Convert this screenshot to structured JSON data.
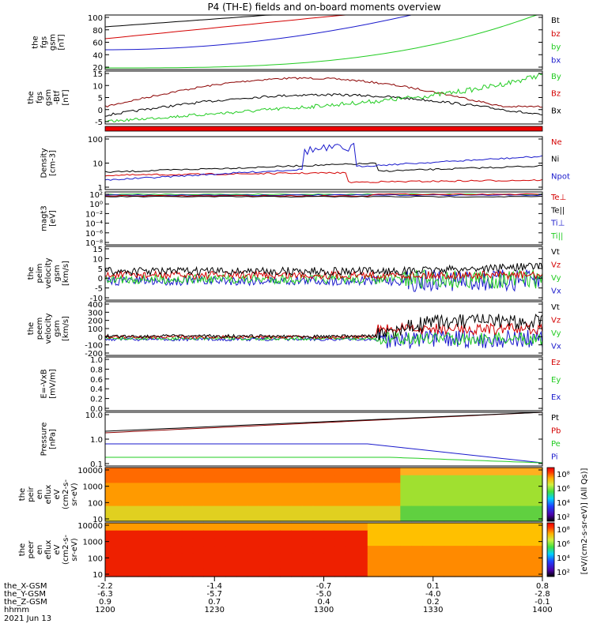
{
  "title": "P4 (TH-E) fields and on-board moments overview",
  "colors": {
    "black": "#000000",
    "red": "#d40000",
    "blue": "#1a1acc",
    "green": "#22cc22",
    "darkred": "#8b0000"
  },
  "chart_data": [
    {
      "type": "line",
      "ylabel_lines": [
        "the",
        "fgs",
        "gsm",
        "[nT]"
      ],
      "yticks": [
        "100",
        "80",
        "60",
        "40",
        "20"
      ],
      "legend": [
        {
          "label": "Bt",
          "color": "black"
        },
        {
          "label": "bz",
          "color": "red"
        },
        {
          "label": "by",
          "color": "green"
        },
        {
          "label": "bx",
          "color": "blue"
        }
      ]
    },
    {
      "type": "line",
      "ylabel_lines": [
        "the",
        "fgs",
        "gsm",
        "-Btf",
        "[nT]"
      ],
      "yticks": [
        "15",
        "10",
        "5",
        "0",
        "-5"
      ],
      "legend": [
        {
          "label": "By",
          "color": "green"
        },
        {
          "label": "Bz",
          "color": "red"
        },
        {
          "label": "Bx",
          "color": "black"
        }
      ]
    },
    {
      "type": "line",
      "ylabel_lines": [
        "Density",
        "[cm-3]"
      ],
      "yticks": [
        "100",
        "10",
        "1"
      ],
      "legend": [
        {
          "label": "Ne",
          "color": "red"
        },
        {
          "label": "Ni",
          "color": "black"
        },
        {
          "label": "Npot",
          "color": "blue"
        }
      ]
    },
    {
      "type": "line",
      "ylabel_lines": [
        "magt3",
        "[eV]"
      ],
      "yticks": [
        "10²",
        "10⁰",
        "10⁻²",
        "10⁻⁴",
        "10⁻⁶",
        "10⁻⁸"
      ],
      "legend": [
        {
          "label": "Te⊥",
          "color": "red"
        },
        {
          "label": "Te||",
          "color": "black"
        },
        {
          "label": "Ti⊥",
          "color": "blue"
        },
        {
          "label": "Ti||",
          "color": "green"
        }
      ]
    },
    {
      "type": "line",
      "ylabel_lines": [
        "the",
        "peim",
        "velocity",
        "gsm",
        "[km/s]"
      ],
      "yticks": [
        "15",
        "10",
        "5",
        "0",
        "-5",
        "-10"
      ],
      "legend": [
        {
          "label": "Vt",
          "color": "black"
        },
        {
          "label": "Vz",
          "color": "red"
        },
        {
          "label": "Vy",
          "color": "green"
        },
        {
          "label": "Vx",
          "color": "blue"
        }
      ]
    },
    {
      "type": "line",
      "ylabel_lines": [
        "the",
        "peem",
        "velocity",
        "gsm",
        "[km/s]"
      ],
      "yticks": [
        "400",
        "300",
        "200",
        "100",
        "0",
        "-100",
        "-200"
      ],
      "legend": [
        {
          "label": "Vt",
          "color": "black"
        },
        {
          "label": "Vz",
          "color": "red"
        },
        {
          "label": "Vy",
          "color": "green"
        },
        {
          "label": "Vx",
          "color": "blue"
        }
      ]
    },
    {
      "type": "line",
      "ylabel_lines": [
        "E=-VxB",
        "[mV/m]"
      ],
      "yticks": [
        "1.0",
        "0.8",
        "0.6",
        "0.4",
        "0.2",
        "0.0"
      ],
      "legend": [
        {
          "label": "Ez",
          "color": "red"
        },
        {
          "label": "Ey",
          "color": "green"
        },
        {
          "label": "Ex",
          "color": "blue"
        }
      ]
    },
    {
      "type": "line",
      "ylabel_lines": [
        "Pressure",
        "[nPa]"
      ],
      "yticks": [
        "10.0",
        "1.0",
        "0.1"
      ],
      "legend": [
        {
          "label": "Pt",
          "color": "black"
        },
        {
          "label": "Pb",
          "color": "red"
        },
        {
          "label": "Pe",
          "color": "green"
        },
        {
          "label": "Pi",
          "color": "blue"
        }
      ]
    },
    {
      "type": "heatmap",
      "ylabel_lines": [
        "the",
        "peir",
        "en",
        "eflux",
        "eV",
        "(cm2-s-",
        "sr-eV)"
      ],
      "yticks": [
        "10000",
        "1000",
        "100",
        "10"
      ],
      "colorbar_ticks": [
        "10⁸",
        "10⁶",
        "10⁴",
        "10²"
      ]
    },
    {
      "type": "heatmap",
      "ylabel_lines": [
        "the",
        "peer",
        "en",
        "eflux",
        "eV",
        "(cm2-s-",
        "sr-eV)"
      ],
      "yticks": [
        "10000",
        "1000",
        "100",
        "10"
      ],
      "colorbar_ticks": [
        "10⁸",
        "10⁶",
        "10⁴",
        "10²"
      ]
    }
  ],
  "colorbar_label": "[eV/(cm2-s-sr-eV)] (All Qs)]",
  "xaxis": {
    "row_labels": [
      "the_X-GSM",
      "the_Y-GSM",
      "the_Z-GSM",
      "hhmm",
      "2021 Jun 13"
    ],
    "columns": [
      [
        "-2.2",
        "-6.3",
        "0.9",
        "1200"
      ],
      [
        "-1.4",
        "-5.7",
        "0.7",
        "1230"
      ],
      [
        "-0.7",
        "-5.0",
        "0.4",
        "1300"
      ],
      [
        "0.1",
        "-4.0",
        "0.2",
        "1330"
      ],
      [
        "0.8",
        "-2.8",
        "-0.1",
        "1400"
      ]
    ]
  }
}
